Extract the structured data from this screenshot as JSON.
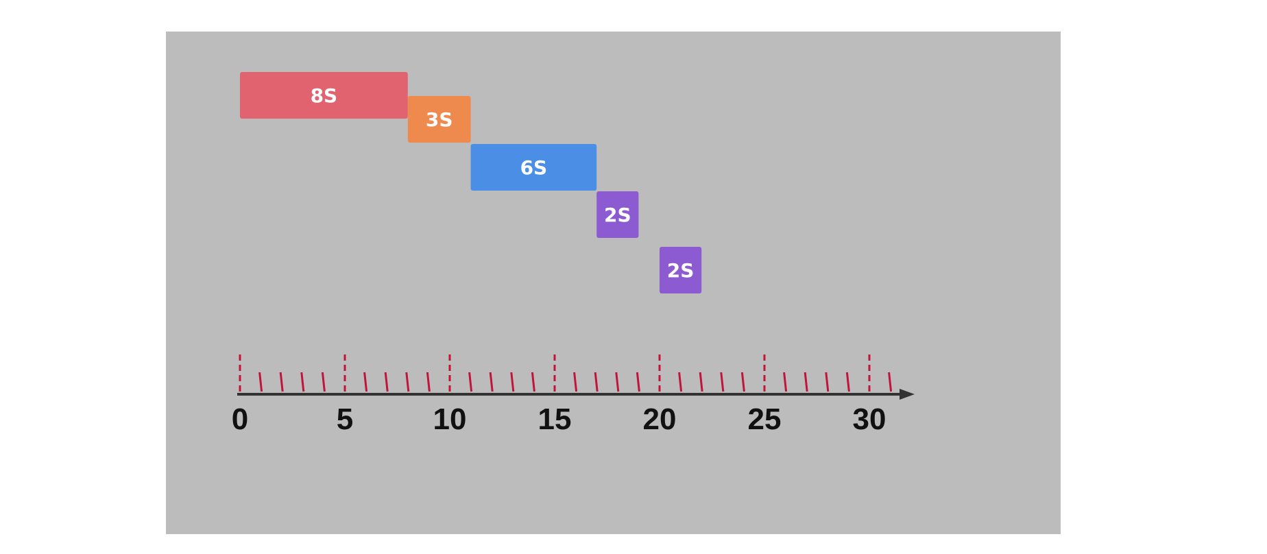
{
  "diagram": {
    "colors": {
      "background": "#bcbcbc",
      "axis": "#333333",
      "ticks": "#c0143c"
    },
    "axis": {
      "min": 0,
      "max": 30,
      "minor_step": 1,
      "major_step": 5,
      "labels": [
        "0",
        "5",
        "10",
        "15",
        "20",
        "25",
        "30"
      ]
    },
    "tasks": [
      {
        "label": "8S",
        "start": 0,
        "duration": 8,
        "color": "#e0636f"
      },
      {
        "label": "3S",
        "start": 8,
        "duration": 3,
        "color": "#ef8a4f"
      },
      {
        "label": "6S",
        "start": 11,
        "duration": 6,
        "color": "#4a8ee6"
      },
      {
        "label": "2S",
        "start": 17,
        "duration": 2,
        "color": "#8c5bd2"
      },
      {
        "label": "2S",
        "start": 20,
        "duration": 2,
        "color": "#8c5bd2"
      }
    ]
  }
}
